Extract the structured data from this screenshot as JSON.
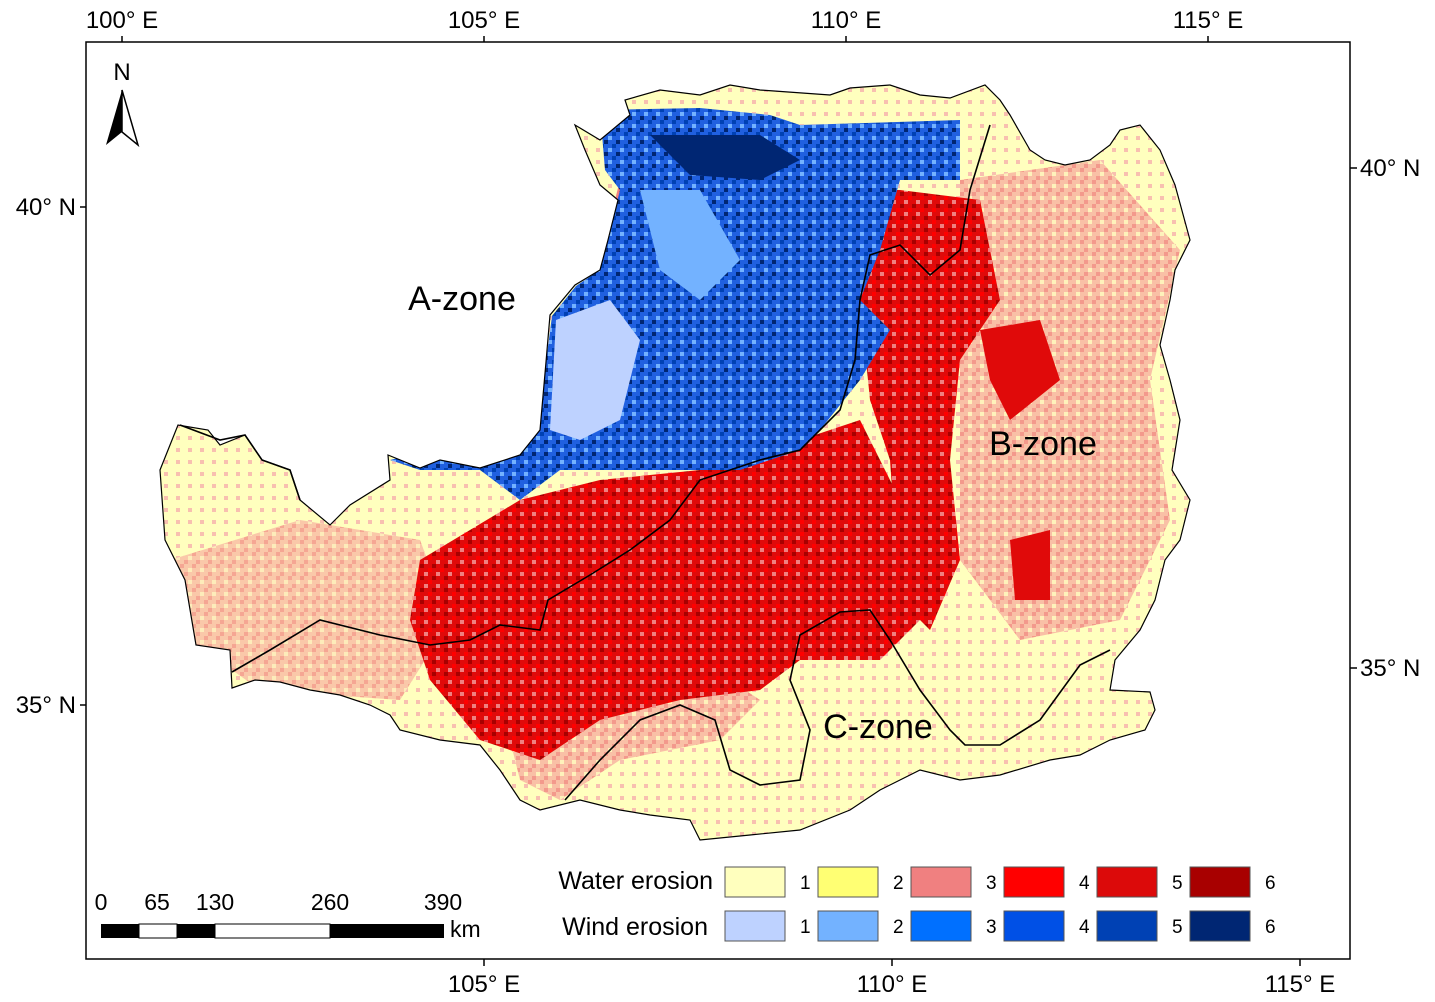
{
  "axes": {
    "top": [
      "100° E",
      "105° E",
      "110° E",
      "115° E"
    ],
    "bottom": [
      "105° E",
      "110° E",
      "115° E"
    ],
    "left": [
      "40° N",
      "35° N"
    ],
    "right": [
      "40° N",
      "35° N"
    ]
  },
  "north_arrow": "N",
  "zones": {
    "a": "A-zone",
    "b": "B-zone",
    "c": "C-zone"
  },
  "legend": {
    "water_title": "Water erosion",
    "wind_title": "Wind erosion",
    "water_classes": [
      {
        "label": "1",
        "color": "#FFFFBE"
      },
      {
        "label": "2",
        "color": "#FFFF73"
      },
      {
        "label": "3",
        "color": "#F08080"
      },
      {
        "label": "4",
        "color": "#FF0000"
      },
      {
        "label": "5",
        "color": "#DC0A0A"
      },
      {
        "label": "6",
        "color": "#A80000"
      }
    ],
    "wind_classes": [
      {
        "label": "1",
        "color": "#BED2FF"
      },
      {
        "label": "2",
        "color": "#73B2FF"
      },
      {
        "label": "3",
        "color": "#0070FF"
      },
      {
        "label": "4",
        "color": "#0050E6"
      },
      {
        "label": "5",
        "color": "#0041B4"
      },
      {
        "label": "6",
        "color": "#002673"
      }
    ]
  },
  "scale_bar": {
    "ticks": [
      "0",
      "65",
      "130",
      "260",
      "390"
    ],
    "unit": "km"
  }
}
